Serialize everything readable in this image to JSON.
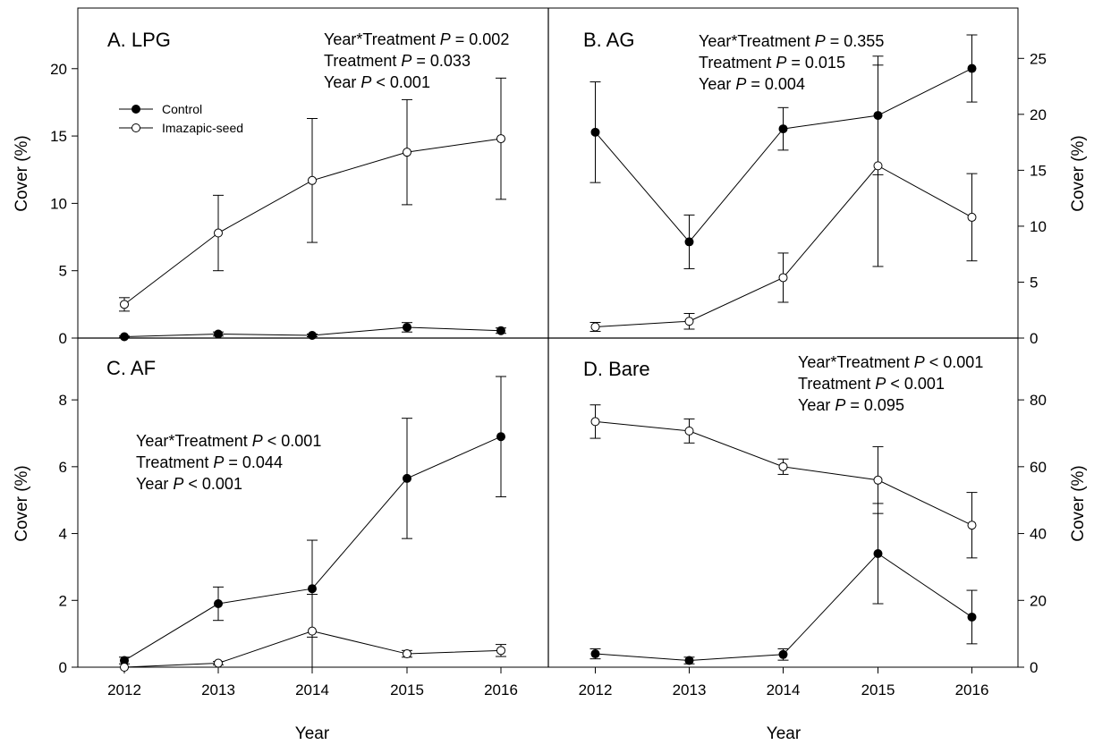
{
  "figure": {
    "xlabel": "Year",
    "ylabel": "Cover (%)",
    "legend": {
      "placement": "upper-left of panel A",
      "control": "Control",
      "imazapic": "Imazapic-seed"
    }
  },
  "chart_data": [
    {
      "type": "line",
      "panel": "A",
      "title": "A. LPG",
      "x": [
        2012,
        2013,
        2014,
        2015,
        2016
      ],
      "ylim": [
        0,
        24.5
      ],
      "yticks": [
        0,
        5,
        10,
        15,
        20
      ],
      "yaxis": "left",
      "stats": [
        {
          "pre": "Year*Treatment ",
          "p": "P",
          "post": " = 0.002"
        },
        {
          "pre": "Treatment ",
          "p": "P",
          "post": " = 0.033"
        },
        {
          "pre": "Year ",
          "p": "P",
          "post": " < 0.001"
        }
      ],
      "series": [
        {
          "name": "Control",
          "marker": "filled",
          "values": [
            0.1,
            0.3,
            0.2,
            0.8,
            0.55
          ],
          "err": [
            0.05,
            0.15,
            0.1,
            0.35,
            0.2
          ]
        },
        {
          "name": "Imazapic-seed",
          "marker": "open",
          "values": [
            2.5,
            7.8,
            11.7,
            13.8,
            14.8
          ],
          "err": [
            0.5,
            2.8,
            4.6,
            3.9,
            4.5
          ]
        }
      ]
    },
    {
      "type": "line",
      "panel": "B",
      "title": "B. AG",
      "x": [
        2012,
        2013,
        2014,
        2015,
        2016
      ],
      "ylim": [
        0,
        29.5
      ],
      "yticks": [
        0,
        5,
        10,
        15,
        20,
        25
      ],
      "yaxis": "right",
      "stats": [
        {
          "pre": "Year*Treatment ",
          "p": "P",
          "post": " = 0.355"
        },
        {
          "pre": "Treatment ",
          "p": "P",
          "post": " = 0.015"
        },
        {
          "pre": "Year ",
          "p": "P",
          "post": " = 0.004"
        }
      ],
      "series": [
        {
          "name": "Control",
          "marker": "filled",
          "values": [
            18.4,
            8.6,
            18.7,
            19.9,
            24.1
          ],
          "err": [
            4.5,
            2.4,
            1.9,
            5.3,
            3.0
          ]
        },
        {
          "name": "Imazapic-seed",
          "marker": "open",
          "values": [
            1.0,
            1.5,
            5.4,
            15.4,
            10.8
          ],
          "err": [
            0.4,
            0.7,
            2.2,
            9.0,
            3.9
          ]
        }
      ]
    },
    {
      "type": "line",
      "panel": "C",
      "title": "C. AF",
      "x": [
        2012,
        2013,
        2014,
        2015,
        2016
      ],
      "ylim": [
        0,
        9.85
      ],
      "yticks": [
        0,
        2,
        4,
        6,
        8
      ],
      "yaxis": "left",
      "stats": [
        {
          "pre": "Year*Treatment ",
          "p": "P",
          "post": " < 0.001"
        },
        {
          "pre": "Treatment ",
          "p": "P",
          "post": " = 0.044"
        },
        {
          "pre": "Year ",
          "p": "P",
          "post": " < 0.001"
        }
      ],
      "series": [
        {
          "name": "Control",
          "marker": "filled",
          "values": [
            0.2,
            1.9,
            2.35,
            5.65,
            6.9
          ],
          "err": [
            0.1,
            0.5,
            1.45,
            1.8,
            1.8
          ]
        },
        {
          "name": "Imazapic-seed",
          "marker": "open",
          "values": [
            0.0,
            0.12,
            1.08,
            0.4,
            0.5
          ],
          "err": [
            0.0,
            0.05,
            1.1,
            0.1,
            0.18
          ]
        }
      ]
    },
    {
      "type": "line",
      "panel": "D",
      "title": "D. Bare",
      "x": [
        2012,
        2013,
        2014,
        2015,
        2016
      ],
      "ylim": [
        0,
        98.5
      ],
      "yticks": [
        0,
        20,
        40,
        60,
        80
      ],
      "yaxis": "right",
      "stats": [
        {
          "pre": "Year*Treatment ",
          "p": "P",
          "post": " < 0.001"
        },
        {
          "pre": "Treatment ",
          "p": "P",
          "post": " < 0.001"
        },
        {
          "pre": "Year ",
          "p": "P",
          "post": " = 0.095"
        }
      ],
      "series": [
        {
          "name": "Control",
          "marker": "filled",
          "values": [
            4.0,
            2.0,
            3.8,
            34.0,
            15.0
          ],
          "err": [
            1.5,
            1.0,
            1.7,
            15.0,
            8.0
          ]
        },
        {
          "name": "Imazapic-seed",
          "marker": "open",
          "values": [
            73.5,
            70.7,
            60.0,
            56.0,
            42.5
          ],
          "err": [
            5.0,
            3.6,
            2.3,
            10.0,
            9.8
          ]
        }
      ]
    }
  ]
}
